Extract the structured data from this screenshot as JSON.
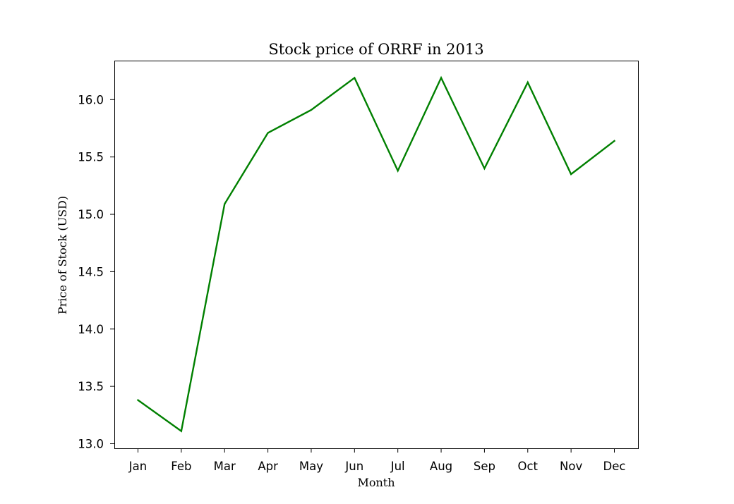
{
  "chart_data": {
    "type": "line",
    "title": "Stock price of ORRF in 2013",
    "xlabel": "Month",
    "ylabel": "Price of Stock (USD)",
    "categories": [
      "Jan",
      "Feb",
      "Mar",
      "Apr",
      "May",
      "Jun",
      "Jul",
      "Aug",
      "Sep",
      "Oct",
      "Nov",
      "Dec"
    ],
    "series": [
      {
        "values": [
          13.38,
          13.11,
          15.09,
          15.71,
          15.91,
          16.19,
          15.38,
          16.19,
          15.4,
          16.15,
          15.35,
          15.64
        ],
        "color": "#008000"
      }
    ],
    "yticks": [
      "13.0",
      "13.5",
      "14.0",
      "14.5",
      "15.0",
      "15.5",
      "16.0"
    ],
    "ylim": [
      12.96,
      16.34
    ],
    "grid": false,
    "legend": "none"
  }
}
